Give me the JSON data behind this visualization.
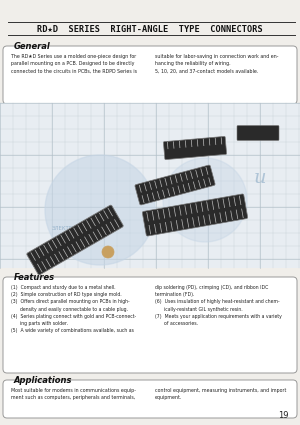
{
  "bg_color": "#f0eeea",
  "title": "RD★D  SERIES  RIGHT-ANGLE  TYPE  CONNECTORS",
  "title_fontsize": 6.2,
  "header_line_color": "#333333",
  "section_general_title": "General",
  "general_text_left": "The RD★D Series use a molded one-piece design for\nparallel mounting on a PCB. Designed to be directly\nconnected to the circuits in PCBs, the RDPD Series is",
  "general_text_right": "suitable for labor-saving in connection work and en-\nhancing the reliability of wiring.\n5, 10, 20, and 37-contact models available.",
  "section_features_title": "Features",
  "features_left": "(1)  Compact and sturdy due to a metal shell.\n(2)  Simple construction of RD type single mold.\n(3)  Offers direct parallel mounting on PCBs in high-\n      density and easily connectable to a cable plug.\n(4)  Series plating connect with gold and PCB-connect-\n      ing parts with solder.\n(5)  A wide variety of combinations available, such as",
  "features_right": "dip soldering (PD), crimping (CD), and ribbon IDC\ntermination (FD).\n(6)  Uses insulation of highly heat-resistant and chem-\n      ically-resistant GIL synthetic resin.\n(7)  Meets your application requirements with a variety\n      of accessories.",
  "section_applications_title": "Applications",
  "applications_text_left": "Most suitable for modems in communications equip-\nment such as computers, peripherals and terminals,",
  "applications_text_right": "control equipment, measuring instruments, and import\nequipment.",
  "page_number": "19",
  "box_color": "#ffffff",
  "box_edge_color": "#999999",
  "image_bg_color": "#e8edf2",
  "grid_color": "#b0bec8",
  "connector_dark": "#2a2a2a",
  "connector_mid": "#555555",
  "connector_light": "#888888",
  "watermark_color": "#c5d5e5",
  "watermark_text_color": "#8aaac5"
}
